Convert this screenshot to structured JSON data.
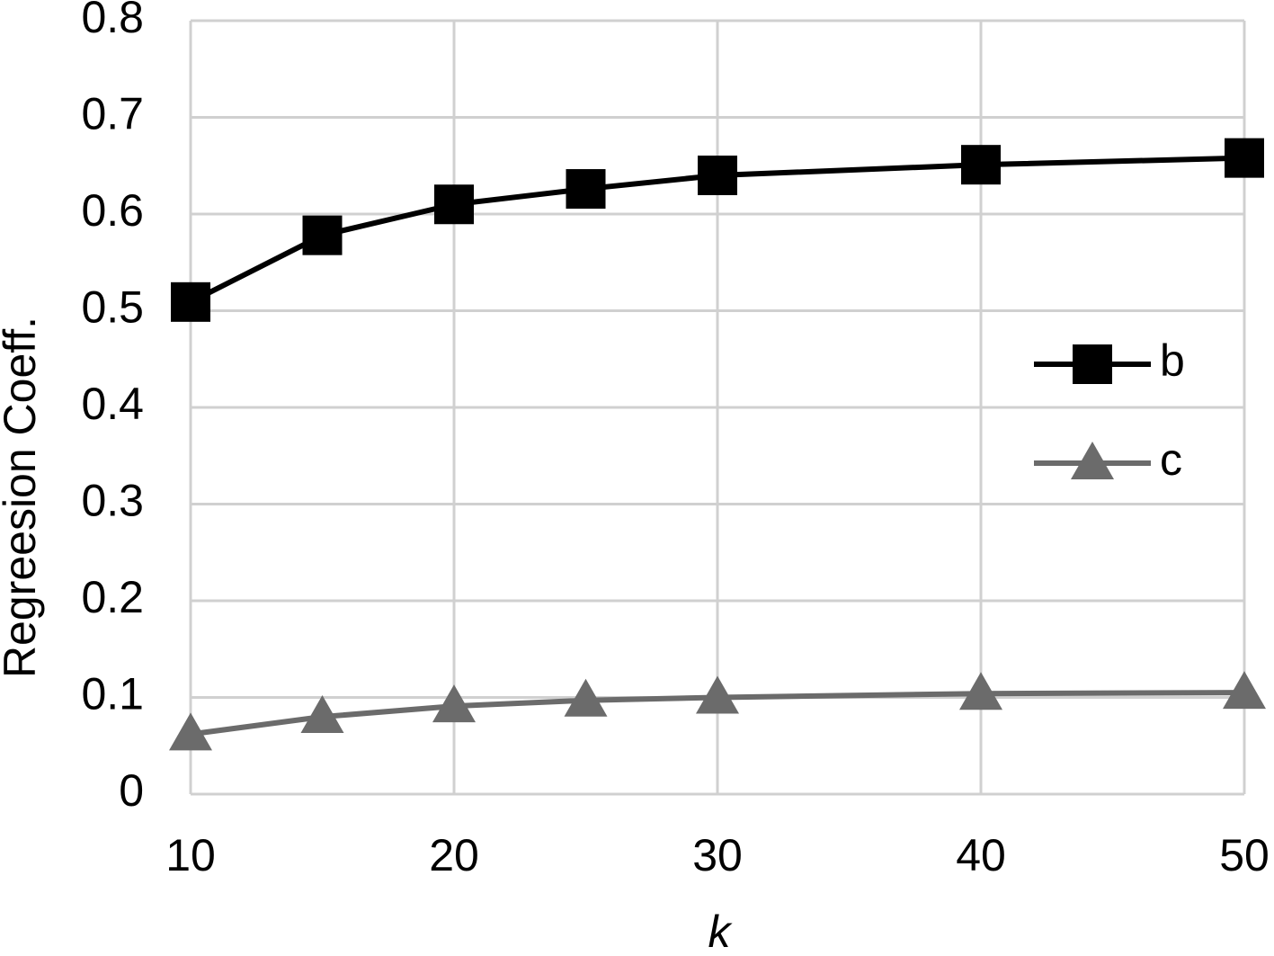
{
  "chart_data": {
    "type": "line",
    "x_label": "k",
    "y_label": "Regreesion Coeff.",
    "x": [
      10,
      15,
      20,
      25,
      30,
      40,
      50
    ],
    "series": [
      {
        "name": "b",
        "color": "#000000",
        "marker": "square",
        "values": [
          0.509,
          0.578,
          0.61,
          0.626,
          0.64,
          0.651,
          0.658
        ]
      },
      {
        "name": "c",
        "color": "#6b6b6b",
        "marker": "triangle",
        "values": [
          0.062,
          0.08,
          0.091,
          0.097,
          0.1,
          0.104,
          0.105
        ]
      }
    ],
    "xlim": [
      10,
      50
    ],
    "xticks": [
      10,
      20,
      30,
      40,
      50
    ],
    "ylim": [
      0,
      0.8
    ],
    "yticks": [
      0,
      0.1,
      0.2,
      0.3,
      0.4,
      0.5,
      0.6,
      0.7,
      0.8
    ],
    "grid": true,
    "legend": "right"
  }
}
